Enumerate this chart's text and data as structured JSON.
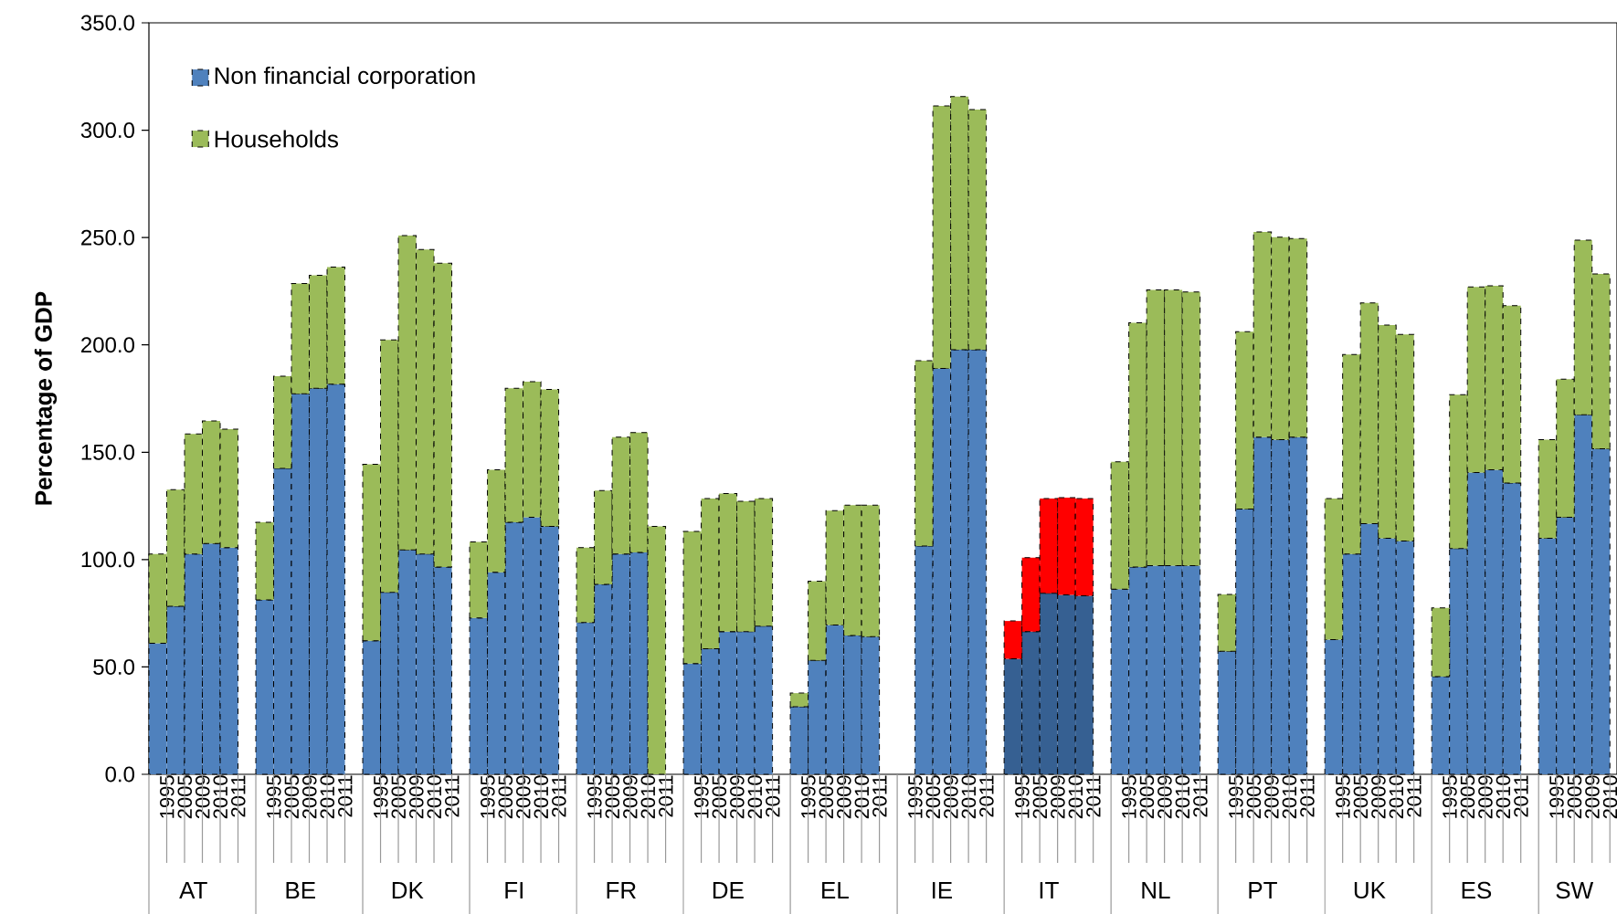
{
  "chart_data": {
    "type": "bar",
    "stacked": true,
    "ylabel": "Percentage of GDP",
    "legend": "top left",
    "categories": [
      "1995",
      "2005",
      "2009",
      "2010",
      "2011",
      null,
      "1995",
      "2005",
      "2009",
      "2010",
      "2011",
      null,
      "1995",
      "2005",
      "2009",
      "2010",
      "2011",
      null,
      "1995",
      "2005",
      "2009",
      "2010",
      "2011",
      null,
      "1995",
      "2005",
      "2009",
      "2010",
      "2011",
      null,
      "1995",
      "2005",
      "2009",
      "2010",
      "2011",
      null,
      "1995",
      "2005",
      "2009",
      "2010",
      "2011",
      null,
      "1995",
      "2005",
      "2009",
      "2010",
      "2011",
      null,
      "1995",
      "2005",
      "2009",
      "2010",
      "2011",
      null,
      "1995",
      "2005",
      "2009",
      "2010",
      "2011",
      null,
      "1995",
      "2005",
      "2009",
      "2010",
      "2011",
      null,
      "1995",
      "2005",
      "2009",
      "2010",
      "2011",
      null,
      "1995",
      "2005",
      "2009",
      "2010",
      "2011",
      null,
      "1995",
      "2005",
      "2009",
      "2010"
    ],
    "annotations": [
      "AT",
      "BE",
      "DK",
      "FI",
      "FR",
      "DE",
      "EL",
      "IE",
      "IT",
      "NL",
      "PT",
      "UK",
      "ES",
      "SW"
    ],
    "ylim": [
      0,
      350
    ],
    "yticks": [
      {
        "value": 0,
        "label": "0.0"
      },
      {
        "value": 50,
        "label": "50.0"
      },
      {
        "value": 100,
        "label": "100.0"
      },
      {
        "value": 150,
        "label": "150.0"
      },
      {
        "value": 200,
        "label": "200.0"
      },
      {
        "value": 250,
        "label": "250.0"
      },
      {
        "value": 300,
        "label": "300.0"
      },
      {
        "value": 350,
        "label": "350.0"
      }
    ],
    "series": [
      {
        "name": "Non financial corporation",
        "color": "#4f81bd",
        "values": [
          61.0,
          78.2,
          102.6,
          107.5,
          105.6,
          null,
          81.2,
          142.5,
          177.2,
          179.8,
          181.7,
          null,
          62.2,
          84.7,
          104.5,
          102.6,
          96.5,
          null,
          72.8,
          94.1,
          117.4,
          119.7,
          115.5,
          null,
          70.7,
          88.5,
          102.6,
          103.3,
          null,
          null,
          51.6,
          58.5,
          66.4,
          66.4,
          69.0,
          null,
          31.5,
          53.1,
          69.5,
          64.6,
          64.1,
          null,
          null,
          106.3,
          189.0,
          197.7,
          197.7,
          null,
          53.8,
          66.4,
          84.3,
          83.6,
          83.1,
          null,
          86.2,
          96.5,
          97.2,
          97.2,
          97.2,
          null,
          57.3,
          123.5,
          157.0,
          155.9,
          157.0,
          null,
          62.7,
          102.6,
          116.7,
          109.9,
          108.7,
          null,
          45.5,
          105.2,
          140.6,
          141.8,
          135.7,
          null,
          109.9,
          119.7,
          167.4,
          151.6
        ],
        "colors": [
          "#4f81bd",
          "#4f81bd",
          "#4f81bd",
          "#4f81bd",
          "#4f81bd",
          null,
          "#4f81bd",
          "#4f81bd",
          "#4f81bd",
          "#4f81bd",
          "#4f81bd",
          null,
          "#4f81bd",
          "#4f81bd",
          "#4f81bd",
          "#4f81bd",
          "#4f81bd",
          null,
          "#4f81bd",
          "#4f81bd",
          "#4f81bd",
          "#4f81bd",
          "#4f81bd",
          null,
          "#4f81bd",
          "#4f81bd",
          "#4f81bd",
          "#4f81bd",
          null,
          null,
          "#4f81bd",
          "#4f81bd",
          "#4f81bd",
          "#4f81bd",
          "#4f81bd",
          null,
          "#4f81bd",
          "#4f81bd",
          "#4f81bd",
          "#4f81bd",
          "#4f81bd",
          null,
          null,
          "#4f81bd",
          "#4f81bd",
          "#4f81bd",
          "#4f81bd",
          null,
          "#366092",
          "#366092",
          "#366092",
          "#366092",
          "#366092",
          null,
          "#4f81bd",
          "#4f81bd",
          "#4f81bd",
          "#4f81bd",
          "#4f81bd",
          null,
          "#4f81bd",
          "#4f81bd",
          "#4f81bd",
          "#4f81bd",
          "#4f81bd",
          null,
          "#4f81bd",
          "#4f81bd",
          "#4f81bd",
          "#4f81bd",
          "#4f81bd",
          null,
          "#4f81bd",
          "#4f81bd",
          "#4f81bd",
          "#4f81bd",
          "#4f81bd",
          null,
          "#4f81bd",
          "#4f81bd",
          "#4f81bd",
          "#4f81bd"
        ]
      },
      {
        "name": "Households",
        "color": "#9bbb59",
        "values": [
          41.6,
          54.4,
          55.9,
          57.1,
          55.2,
          null,
          36.2,
          42.9,
          51.4,
          52.6,
          54.5,
          null,
          82.2,
          117.6,
          146.4,
          141.8,
          141.5,
          null,
          35.4,
          47.7,
          62.4,
          63.2,
          63.8,
          null,
          34.9,
          43.7,
          54.4,
          55.9,
          115.5,
          null,
          61.5,
          69.9,
          64.4,
          60.8,
          59.4,
          null,
          6.3,
          36.8,
          53.3,
          60.8,
          61.3,
          null,
          null,
          86.4,
          122.3,
          118.0,
          111.9,
          null,
          17.6,
          34.5,
          44.1,
          45.3,
          45.3,
          null,
          59.3,
          113.8,
          128.4,
          128.4,
          127.4,
          null,
          26.5,
          82.6,
          95.6,
          94.3,
          92.5,
          null,
          65.7,
          92.9,
          102.8,
          99.3,
          96.2,
          null,
          32.0,
          71.6,
          86.4,
          85.7,
          82.6,
          null,
          46.0,
          64.3,
          81.4,
          81.5
        ],
        "colors": [
          "#9bbb59",
          "#9bbb59",
          "#9bbb59",
          "#9bbb59",
          "#9bbb59",
          null,
          "#9bbb59",
          "#9bbb59",
          "#9bbb59",
          "#9bbb59",
          "#9bbb59",
          null,
          "#9bbb59",
          "#9bbb59",
          "#9bbb59",
          "#9bbb59",
          "#9bbb59",
          null,
          "#9bbb59",
          "#9bbb59",
          "#9bbb59",
          "#9bbb59",
          "#9bbb59",
          null,
          "#9bbb59",
          "#9bbb59",
          "#9bbb59",
          "#9bbb59",
          "#9bbb59",
          null,
          "#9bbb59",
          "#9bbb59",
          "#9bbb59",
          "#9bbb59",
          "#9bbb59",
          null,
          "#9bbb59",
          "#9bbb59",
          "#9bbb59",
          "#9bbb59",
          "#9bbb59",
          null,
          null,
          "#9bbb59",
          "#9bbb59",
          "#9bbb59",
          "#9bbb59",
          null,
          "#ff0000",
          "#ff0000",
          "#ff0000",
          "#ff0000",
          "#ff0000",
          null,
          "#9bbb59",
          "#9bbb59",
          "#9bbb59",
          "#9bbb59",
          "#9bbb59",
          null,
          "#9bbb59",
          "#9bbb59",
          "#9bbb59",
          "#9bbb59",
          "#9bbb59",
          null,
          "#9bbb59",
          "#9bbb59",
          "#9bbb59",
          "#9bbb59",
          "#9bbb59",
          null,
          "#9bbb59",
          "#9bbb59",
          "#9bbb59",
          "#9bbb59",
          "#9bbb59",
          null,
          "#9bbb59",
          "#9bbb59",
          "#9bbb59",
          "#9bbb59"
        ]
      }
    ]
  }
}
